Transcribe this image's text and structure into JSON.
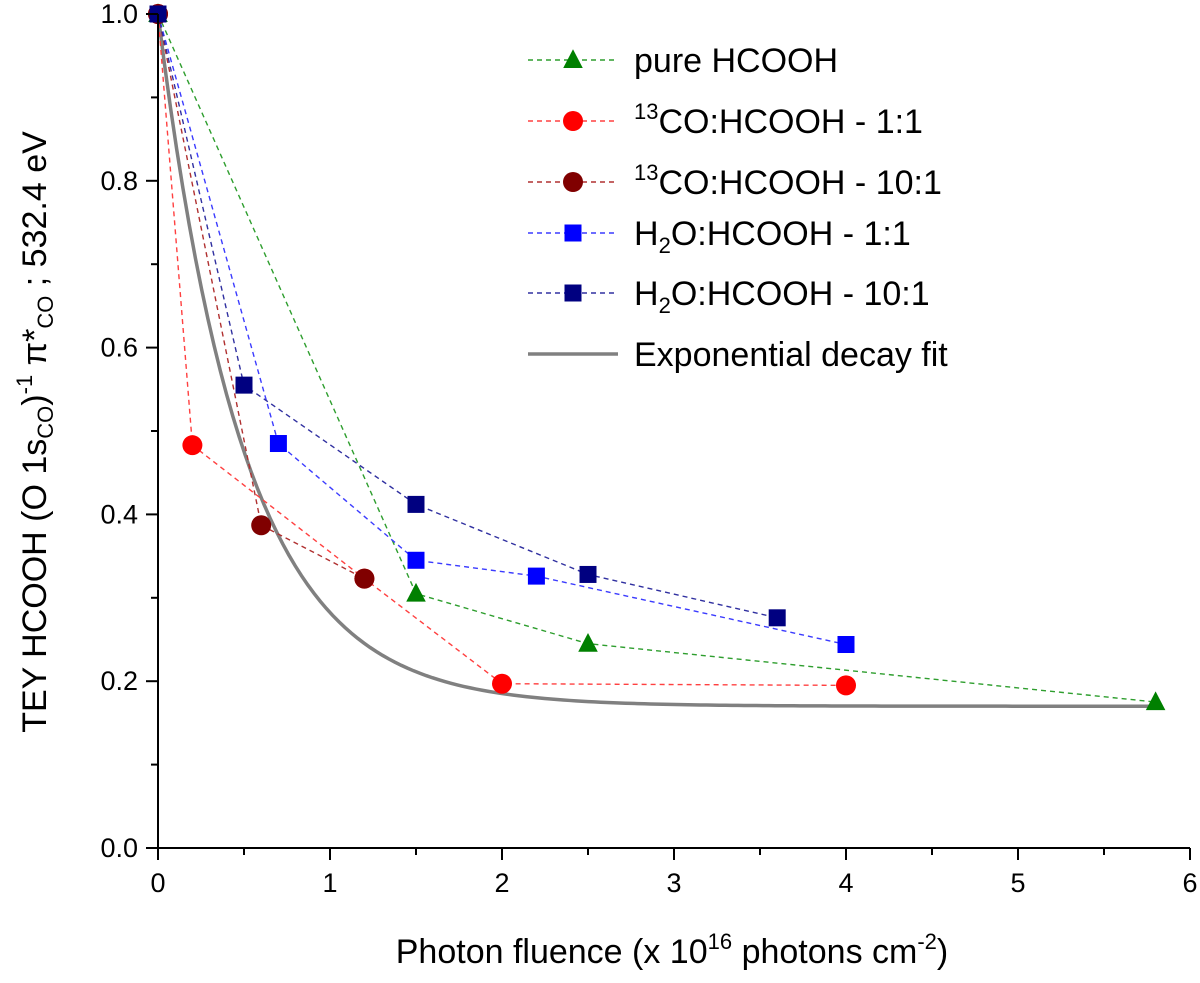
{
  "chart_data": {
    "type": "scatter",
    "title": "",
    "xlabel": {
      "main": "Photon fluence (x 10",
      "sup1": "16",
      "mid": " photons cm",
      "sup2": "-2",
      "end": ")"
    },
    "ylabel": {
      "p1": "TEY HCOOH (O 1s",
      "sub1": "CO",
      "p2": ")",
      "sup1": "-1",
      "p3": " π*",
      "sub2": "CO",
      "p4": " ; 532.4 eV"
    },
    "xlim": [
      0,
      6
    ],
    "ylim": [
      0,
      1.0
    ],
    "xticks": [
      0,
      1,
      2,
      3,
      4,
      5,
      6
    ],
    "xtick_labels": [
      "0",
      "1",
      "2",
      "3",
      "4",
      "5",
      "6"
    ],
    "yticks": [
      0.0,
      0.2,
      0.4,
      0.6,
      0.8,
      1.0
    ],
    "ytick_labels": [
      "0.0",
      "0.2",
      "0.4",
      "0.6",
      "0.8",
      "1.0"
    ],
    "legend_position": "top-right",
    "series": [
      {
        "name": "pure HCOOH",
        "legend": {
          "pre": "",
          "sup": "",
          "main": "pure HCOOH",
          "sub": "",
          "post": ""
        },
        "marker": "triangle",
        "color": "#008000",
        "line_color": "#2e9e2e",
        "x": [
          0,
          1.5,
          2.5,
          5.8
        ],
        "y": [
          1.0,
          0.305,
          0.245,
          0.175
        ]
      },
      {
        "name": "13CO:HCOOH - 1:1",
        "legend": {
          "pre": "",
          "sup": "13",
          "main": "CO:HCOOH - 1:1",
          "sub": "",
          "post": ""
        },
        "marker": "circle",
        "color": "#ff0000",
        "line_color": "#ff4040",
        "x": [
          0,
          0.2,
          1.2,
          2.0,
          4.0
        ],
        "y": [
          1.0,
          0.483,
          0.323,
          0.197,
          0.195
        ]
      },
      {
        "name": "13CO:HCOOH - 10:1",
        "legend": {
          "pre": "",
          "sup": "13",
          "main": "CO:HCOOH - 10:1",
          "sub": "",
          "post": ""
        },
        "marker": "circle",
        "color": "#800000",
        "line_color": "#b03030",
        "x": [
          0,
          0.6,
          1.2
        ],
        "y": [
          1.0,
          0.387,
          0.323
        ]
      },
      {
        "name": "H2O:HCOOH - 1:1",
        "legend": {
          "pre": "H",
          "sup": "",
          "main": "O:HCOOH - 1:1",
          "sub": "2",
          "post": ""
        },
        "marker": "square",
        "color": "#0000ff",
        "line_color": "#3b3bff",
        "x": [
          0,
          0.7,
          1.5,
          2.2,
          4.0
        ],
        "y": [
          1.0,
          0.485,
          0.345,
          0.326,
          0.244
        ]
      },
      {
        "name": "H2O:HCOOH - 10:1",
        "legend": {
          "pre": "H",
          "sup": "",
          "main": "O:HCOOH - 10:1",
          "sub": "2",
          "post": ""
        },
        "marker": "square",
        "color": "#000080",
        "line_color": "#3030a0",
        "x": [
          0,
          0.5,
          1.5,
          2.5,
          3.6
        ],
        "y": [
          1.0,
          0.555,
          0.412,
          0.328,
          0.276
        ]
      }
    ],
    "fit": {
      "name": "Exponential decay fit",
      "color": "#808080",
      "y0": 0.17,
      "A": 0.83,
      "t": 0.5,
      "x_range": [
        0,
        5.8
      ]
    }
  }
}
